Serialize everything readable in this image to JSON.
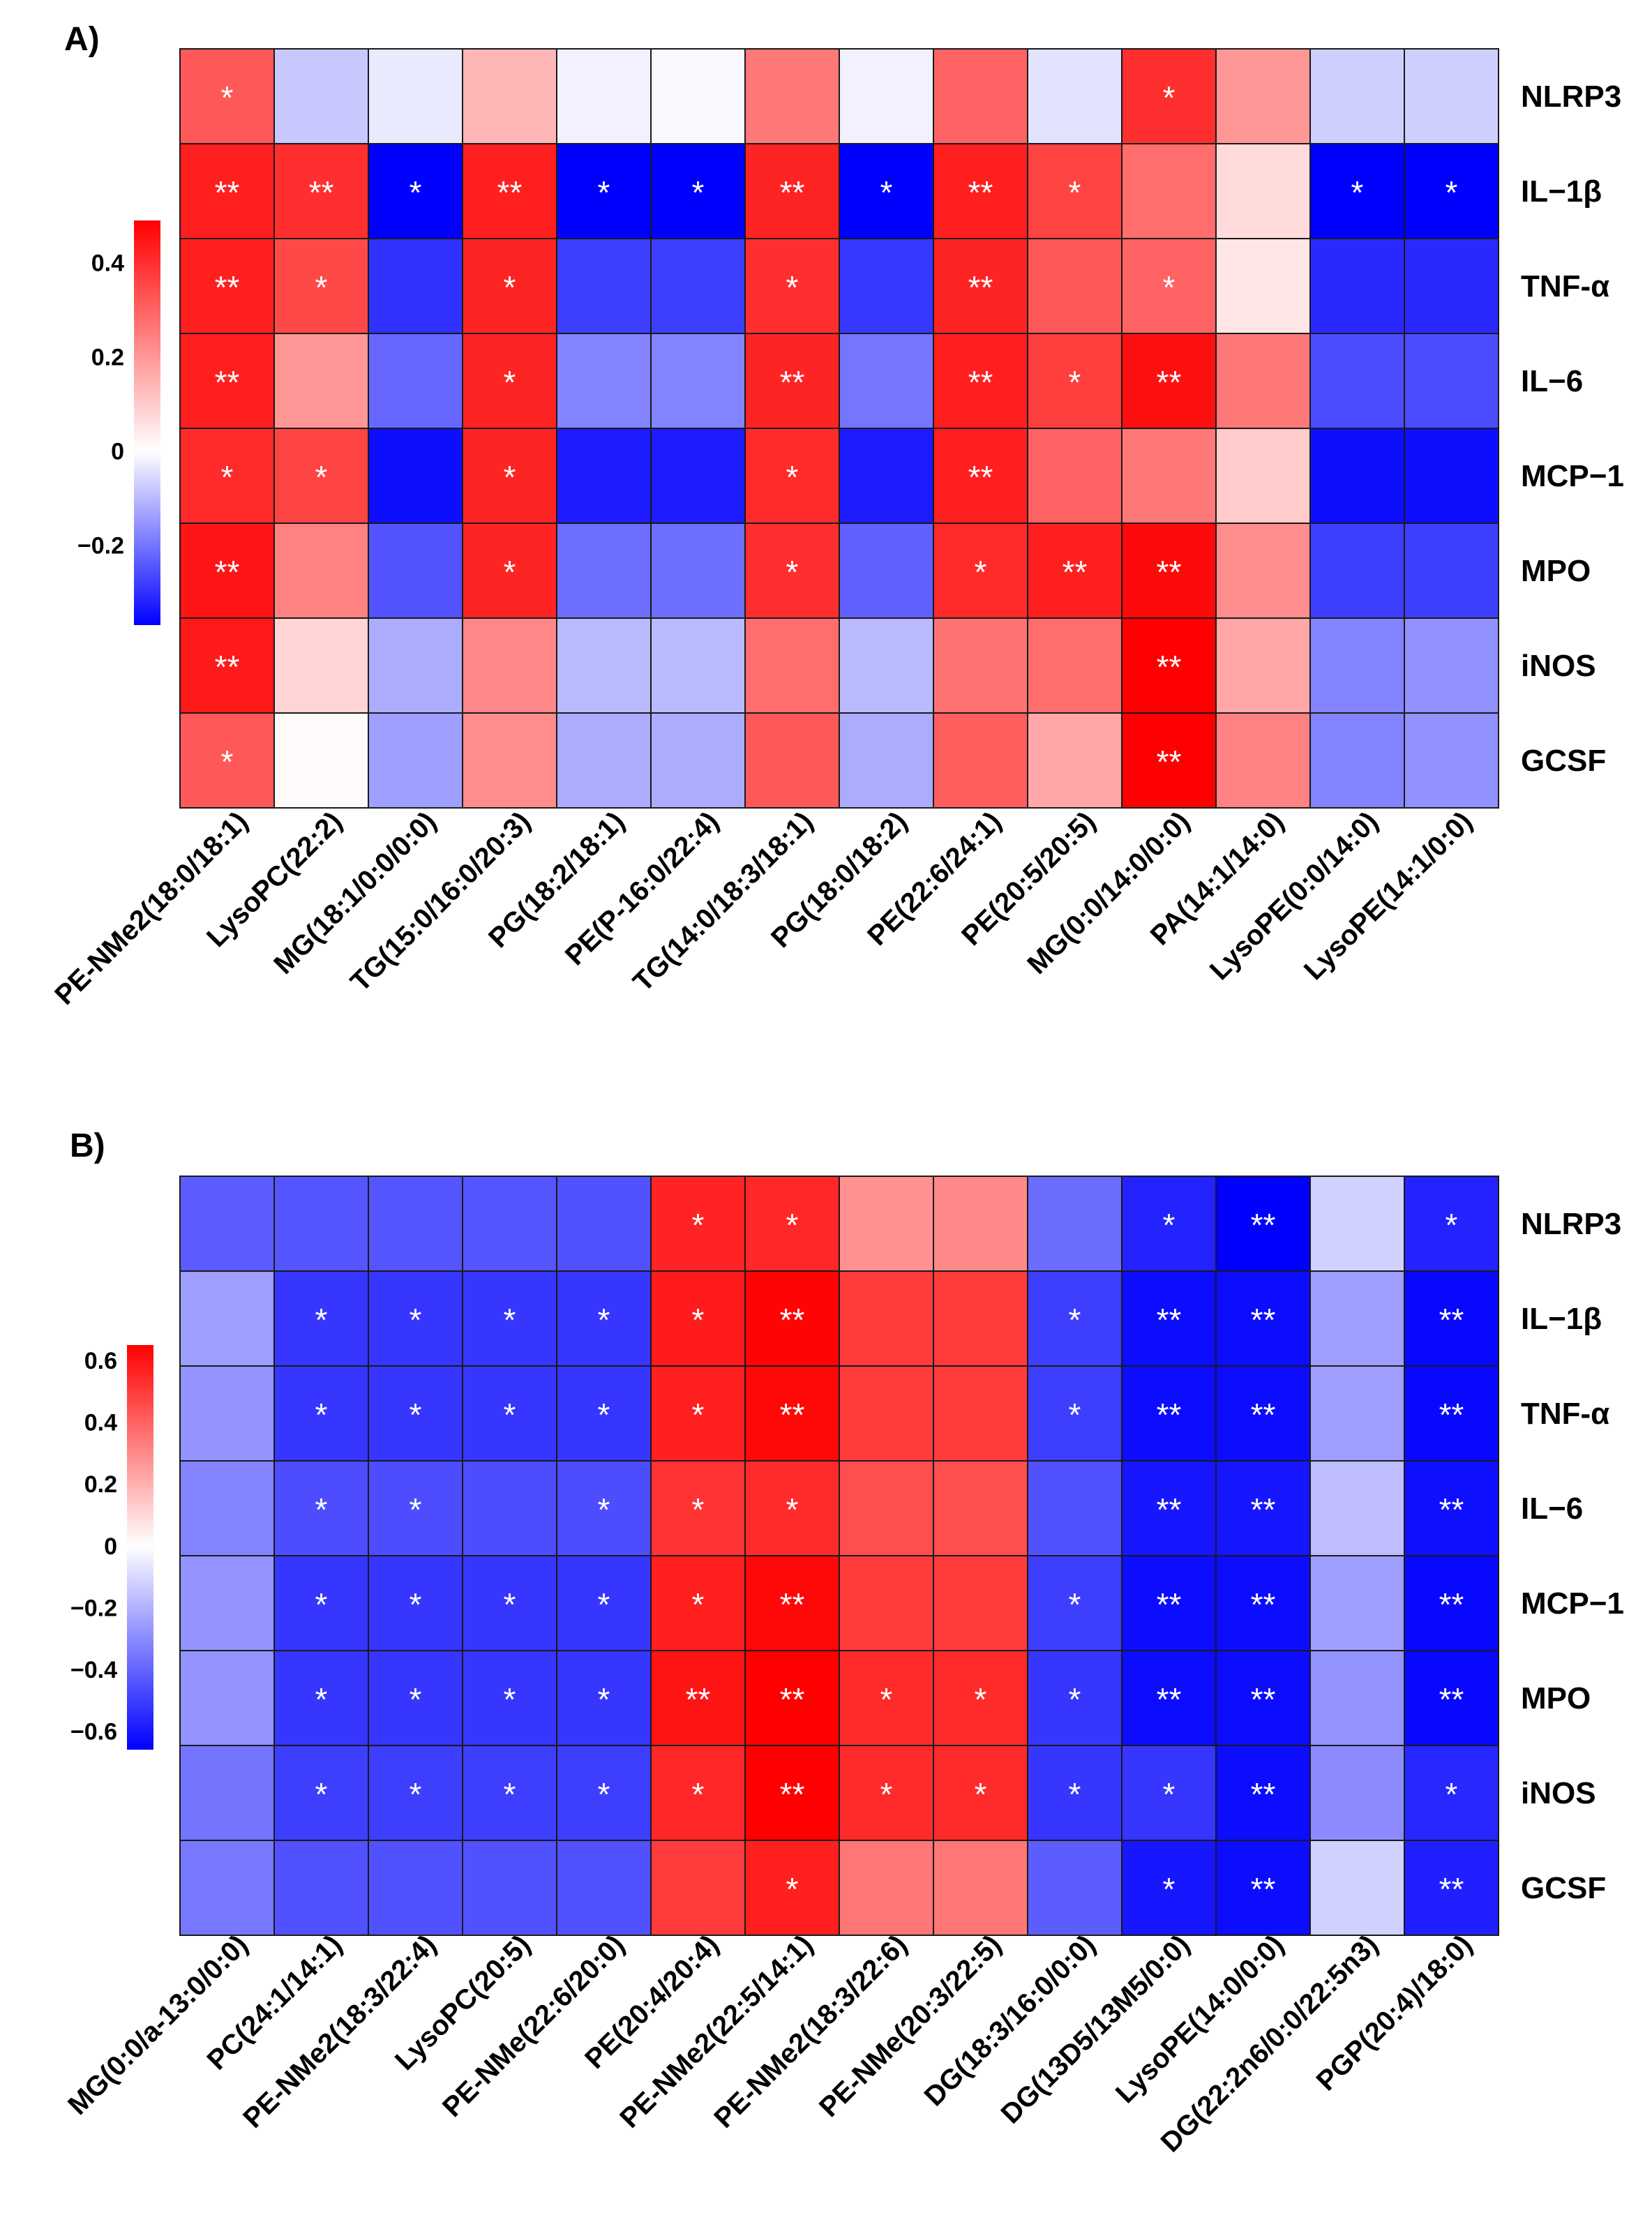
{
  "colors": {
    "negative": "#0000ff",
    "neutral": "#ffffff",
    "positive": "#ff0000",
    "grid": "#1a1a1a",
    "star": "#ffffff"
  },
  "chart_data": [
    {
      "type": "heatmap",
      "panel_label": "A)",
      "rows": [
        "NLRP3",
        "IL−1β",
        "TNF-α",
        "IL−6",
        "MCP−1",
        "MPO",
        "iNOS",
        "GCSF"
      ],
      "columns": [
        "PE-NMe2(18:0/18:1)",
        "LysoPC(22:2)",
        "MG(18:1/0:0/0:0)",
        "TG(15:0/16:0/20:3)",
        "PG(18:2/18:1)",
        "PE(P-16:0/22:4)",
        "TG(14:0/18:3/18:1)",
        "PG(18:0/18:2)",
        "PE(22:6/24:1)",
        "PE(20:5/20:5)",
        "MG(0:0/14:0/0:0)",
        "PA(14:1/14:0)",
        "LysoPE(0:0/14:0)",
        "LysoPE(14:1/0:0)"
      ],
      "values": [
        [
          0.32,
          -0.08,
          -0.03,
          0.14,
          -0.02,
          -0.01,
          0.26,
          -0.02,
          0.3,
          -0.04,
          0.4,
          0.2,
          -0.07,
          -0.07
        ],
        [
          0.43,
          0.4,
          -0.37,
          0.43,
          -0.37,
          -0.37,
          0.42,
          -0.37,
          0.43,
          0.36,
          0.28,
          0.07,
          -0.37,
          -0.37
        ],
        [
          0.43,
          0.35,
          -0.3,
          0.42,
          -0.28,
          -0.28,
          0.4,
          -0.29,
          0.42,
          0.32,
          0.3,
          0.05,
          -0.31,
          -0.31
        ],
        [
          0.43,
          0.2,
          -0.22,
          0.42,
          -0.18,
          -0.18,
          0.42,
          -0.2,
          0.43,
          0.37,
          0.46,
          0.26,
          -0.26,
          -0.26
        ],
        [
          0.41,
          0.36,
          -0.35,
          0.42,
          -0.33,
          -0.33,
          0.41,
          -0.33,
          0.43,
          0.3,
          0.26,
          0.1,
          -0.35,
          -0.35
        ],
        [
          0.45,
          0.24,
          -0.25,
          0.42,
          -0.21,
          -0.21,
          0.4,
          -0.23,
          0.41,
          0.43,
          0.47,
          0.22,
          -0.28,
          -0.28
        ],
        [
          0.44,
          0.08,
          -0.12,
          0.23,
          -0.1,
          -0.1,
          0.28,
          -0.1,
          0.27,
          0.28,
          0.49,
          0.17,
          -0.18,
          -0.16
        ],
        [
          0.32,
          0.01,
          -0.14,
          0.22,
          -0.12,
          -0.12,
          0.32,
          -0.12,
          0.31,
          0.17,
          0.49,
          0.24,
          -0.18,
          -0.16
        ]
      ],
      "significance": [
        [
          "*",
          "",
          "",
          "",
          "",
          "",
          "",
          "",
          "",
          "",
          "*",
          "",
          "",
          ""
        ],
        [
          "**",
          "**",
          "*",
          "**",
          "*",
          "*",
          "**",
          "*",
          "**",
          "*",
          "",
          "",
          "*",
          "*"
        ],
        [
          "**",
          "*",
          "",
          "*",
          "",
          "",
          "*",
          "",
          "**",
          "",
          "*",
          "",
          "",
          ""
        ],
        [
          "**",
          "",
          "",
          "*",
          "",
          "",
          "**",
          "",
          "**",
          "*",
          "**",
          "",
          "",
          ""
        ],
        [
          "*",
          "*",
          "",
          "*",
          "",
          "",
          "*",
          "",
          "**",
          "",
          "",
          "",
          "",
          ""
        ],
        [
          "**",
          "",
          "",
          "*",
          "",
          "",
          "*",
          "",
          "*",
          "**",
          "**",
          "",
          "",
          ""
        ],
        [
          "**",
          "",
          "",
          "",
          "",
          "",
          "",
          "",
          "",
          "",
          "**",
          "",
          "",
          ""
        ],
        [
          "*",
          "",
          "",
          "",
          "",
          "",
          "",
          "",
          "",
          "",
          "**",
          "",
          "",
          ""
        ]
      ],
      "colorbar": {
        "vmin": -0.37,
        "vmax": 0.49,
        "ticks": [
          0.4,
          0.2,
          0,
          -0.2
        ],
        "tick_labels": [
          "0.4",
          "0.2",
          "0",
          "−0.2"
        ]
      }
    },
    {
      "type": "heatmap",
      "panel_label": "B)",
      "rows": [
        "NLRP3",
        "IL−1β",
        "TNF-α",
        "IL−6",
        "MCP−1",
        "MPO",
        "iNOS",
        "GCSF"
      ],
      "columns": [
        "MG(0:0/a-13:0/0:0)",
        "PC(24:1/14:1)",
        "PE-NMe2(18:3/22:4)",
        "LysoPC(20:5)",
        "PE-NMe(22:6/20:0)",
        "PE(20:4/20:4)",
        "PE-NMe2(22:5/14:1)",
        "PE-NMe2(18:3/22:6)",
        "PE-NMe(20:3/22:5)",
        "DG(18:3/16:0/0:0)",
        "DG(13D5/13M5/0:0)",
        "LysoPE(14:0/0:0)",
        "DG(22:2n6/0:0/22:5n3)",
        "PGP(20:4)/18:0)"
      ],
      "values": [
        [
          -0.42,
          -0.44,
          -0.44,
          -0.44,
          -0.45,
          0.56,
          0.55,
          0.28,
          0.3,
          -0.38,
          -0.57,
          -0.66,
          -0.12,
          -0.57
        ],
        [
          -0.25,
          -0.52,
          -0.52,
          -0.52,
          -0.52,
          0.58,
          0.64,
          0.5,
          0.5,
          -0.5,
          -0.63,
          -0.63,
          -0.25,
          -0.64
        ],
        [
          -0.28,
          -0.52,
          -0.52,
          -0.52,
          -0.52,
          0.57,
          0.63,
          0.5,
          0.5,
          -0.5,
          -0.63,
          -0.63,
          -0.25,
          -0.64
        ],
        [
          -0.32,
          -0.46,
          -0.46,
          -0.46,
          -0.46,
          0.52,
          0.54,
          0.45,
          0.45,
          -0.45,
          -0.6,
          -0.6,
          -0.17,
          -0.62
        ],
        [
          -0.28,
          -0.52,
          -0.52,
          -0.52,
          -0.52,
          0.57,
          0.63,
          0.5,
          0.5,
          -0.5,
          -0.63,
          -0.63,
          -0.25,
          -0.64
        ],
        [
          -0.28,
          -0.52,
          -0.52,
          -0.52,
          -0.52,
          0.6,
          0.65,
          0.54,
          0.54,
          -0.52,
          -0.63,
          -0.63,
          -0.28,
          -0.64
        ],
        [
          -0.36,
          -0.5,
          -0.5,
          -0.5,
          -0.5,
          0.55,
          0.65,
          0.54,
          0.54,
          -0.52,
          -0.52,
          -0.63,
          -0.3,
          -0.56
        ],
        [
          -0.35,
          -0.45,
          -0.45,
          -0.45,
          -0.45,
          0.5,
          0.57,
          0.35,
          0.35,
          -0.42,
          -0.6,
          -0.63,
          -0.12,
          -0.58
        ]
      ],
      "significance": [
        [
          "",
          "",
          "",
          "",
          "",
          "*",
          "*",
          "",
          "",
          "",
          "*",
          "**",
          "",
          "*"
        ],
        [
          "",
          "*",
          "*",
          "*",
          "*",
          "*",
          "**",
          "",
          "",
          "*",
          "**",
          "**",
          "",
          "**"
        ],
        [
          "",
          "*",
          "*",
          "*",
          "*",
          "*",
          "**",
          "",
          "",
          "*",
          "**",
          "**",
          "",
          "**"
        ],
        [
          "",
          "*",
          "*",
          "",
          "*",
          "*",
          "*",
          "",
          "",
          "",
          "**",
          "**",
          "",
          "**"
        ],
        [
          "",
          "*",
          "*",
          "*",
          "*",
          "*",
          "**",
          "",
          "",
          "*",
          "**",
          "**",
          "",
          "**"
        ],
        [
          "",
          "*",
          "*",
          "*",
          "*",
          "**",
          "**",
          "*",
          "*",
          "*",
          "**",
          "**",
          "",
          "**"
        ],
        [
          "",
          "*",
          "*",
          "*",
          "*",
          "*",
          "**",
          "*",
          "*",
          "*",
          "*",
          "**",
          "",
          "*"
        ],
        [
          "",
          "",
          "",
          "",
          "",
          "",
          "*",
          "",
          "",
          "",
          "*",
          "**",
          "",
          "**"
        ]
      ],
      "colorbar": {
        "vmin": -0.66,
        "vmax": 0.65,
        "ticks": [
          0.6,
          0.4,
          0.2,
          0,
          -0.2,
          -0.4,
          -0.6
        ],
        "tick_labels": [
          "0.6",
          "0.4",
          "0.2",
          "0",
          "−0.2",
          "−0.4",
          "−0.6"
        ]
      }
    }
  ]
}
